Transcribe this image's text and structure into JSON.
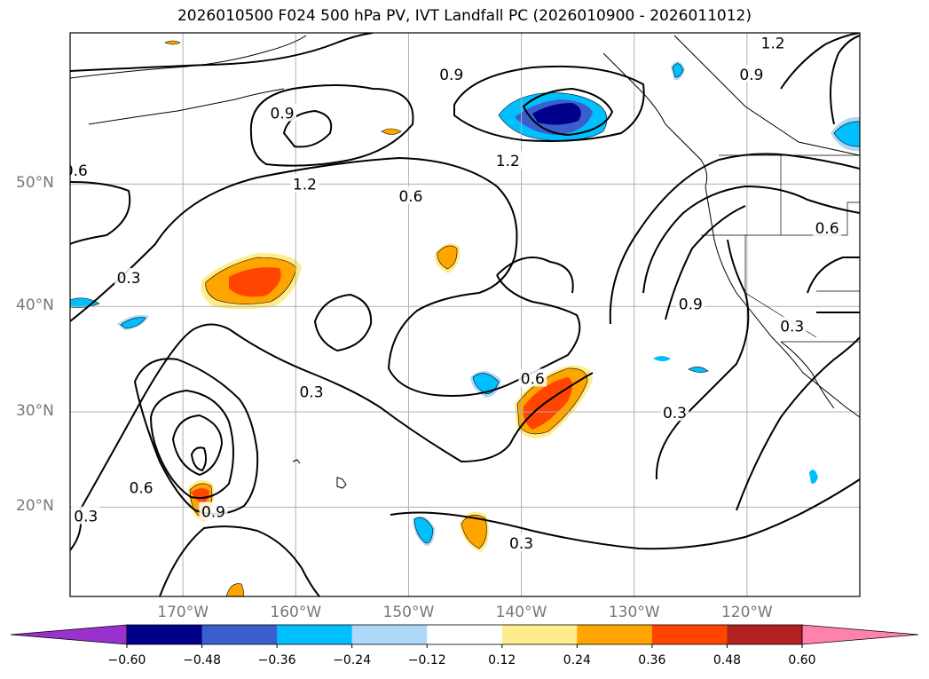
{
  "title": "2026010500 F024 500 hPa PV, IVT Landfall PC (2026010900 - 2026011012)",
  "map_extent": {
    "lon": [
      -180,
      -110
    ],
    "lat": [
      10,
      60
    ]
  },
  "lat_ticks": [
    {
      "value": 50,
      "label": "50°N"
    },
    {
      "value": 40,
      "label": "40°N"
    },
    {
      "value": 30,
      "label": "30°N"
    },
    {
      "value": 20,
      "label": "20°N"
    }
  ],
  "lon_ticks": [
    {
      "value": -170,
      "label": "170°W"
    },
    {
      "value": -160,
      "label": "160°W"
    },
    {
      "value": -150,
      "label": "150°W"
    },
    {
      "value": -140,
      "label": "140°W"
    },
    {
      "value": -130,
      "label": "130°W"
    },
    {
      "value": -120,
      "label": "120°W"
    }
  ],
  "colorbar": {
    "levels": [
      "−0.60",
      "−0.48",
      "−0.36",
      "−0.24",
      "−0.12",
      "0.12",
      "0.24",
      "0.36",
      "0.48",
      "0.60"
    ],
    "colors": [
      "#9932cc",
      "#00008b",
      "#3a5fcd",
      "#00bfff",
      "#add8f7",
      "#ffffff",
      "#ffec8b",
      "#ffa500",
      "#ff4500",
      "#b22222",
      "#ff82ab"
    ]
  },
  "contour_labels": [
    {
      "text": "0.9",
      "lon": -161.2,
      "lat": 55.0
    },
    {
      "text": "0.6",
      "lon": -179.5,
      "lat": 51.0
    },
    {
      "text": "1.2",
      "lon": -159.2,
      "lat": 50.0
    },
    {
      "text": "0.3",
      "lon": -174.8,
      "lat": 42.5
    },
    {
      "text": "0.9",
      "lon": -146.2,
      "lat": 57.5
    },
    {
      "text": "1.2",
      "lon": -141.2,
      "lat": 51.7
    },
    {
      "text": "0.6",
      "lon": -149.8,
      "lat": 49.1
    },
    {
      "text": "0.6",
      "lon": -139.0,
      "lat": 33.3
    },
    {
      "text": "0.3",
      "lon": -158.6,
      "lat": 32.0
    },
    {
      "text": "0.6",
      "lon": -173.7,
      "lat": 22.1
    },
    {
      "text": "0.9",
      "lon": -167.3,
      "lat": 19.5
    },
    {
      "text": "0.3",
      "lon": -178.6,
      "lat": 19.0
    },
    {
      "text": "0.3",
      "lon": -140.0,
      "lat": 16.0
    },
    {
      "text": "0.3",
      "lon": -126.4,
      "lat": 29.9
    },
    {
      "text": "0.9",
      "lon": -125.0,
      "lat": 40.2
    },
    {
      "text": "0.6",
      "lon": -112.9,
      "lat": 46.6
    },
    {
      "text": "0.3",
      "lon": -116.0,
      "lat": 38.2
    },
    {
      "text": "0.9",
      "lon": -119.6,
      "lat": 57.5
    },
    {
      "text": "1.2",
      "lon": -117.7,
      "lat": 59.4
    }
  ]
}
